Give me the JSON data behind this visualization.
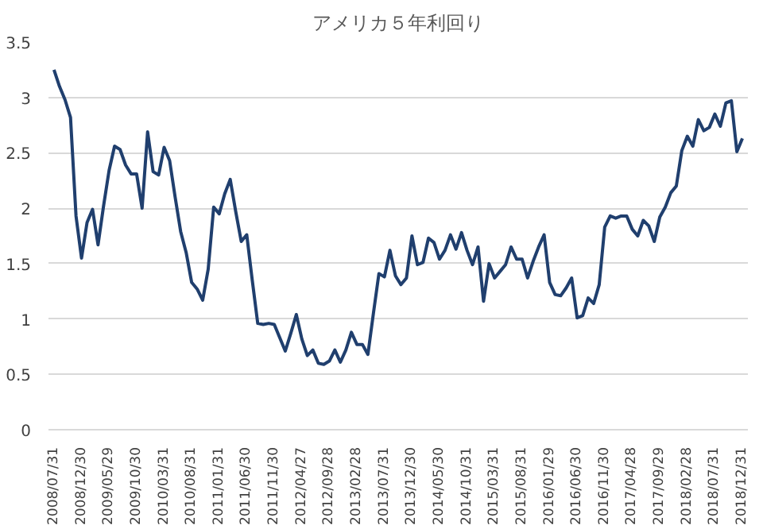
{
  "chart_data": {
    "type": "line",
    "title": "アメリカ５年利回り",
    "categories": [
      "2008/07/31",
      null,
      null,
      null,
      null,
      "2008/12/30",
      null,
      null,
      null,
      null,
      "2009/05/29",
      null,
      null,
      null,
      null,
      "2009/10/30",
      null,
      null,
      null,
      null,
      "2010/03/31",
      null,
      null,
      null,
      null,
      "2010/08/31",
      null,
      null,
      null,
      null,
      "2011/01/31",
      null,
      null,
      null,
      null,
      "2011/06/30",
      null,
      null,
      null,
      null,
      "2011/11/30",
      null,
      null,
      null,
      null,
      "2012/04/27",
      null,
      null,
      null,
      null,
      "2012/09/28",
      null,
      null,
      null,
      null,
      "2013/02/28",
      null,
      null,
      null,
      null,
      "2013/07/31",
      null,
      null,
      null,
      null,
      "2013/12/30",
      null,
      null,
      null,
      null,
      "2014/05/30",
      null,
      null,
      null,
      null,
      "2014/10/31",
      null,
      null,
      null,
      null,
      "2015/03/31",
      null,
      null,
      null,
      null,
      "2015/08/31",
      null,
      null,
      null,
      null,
      "2016/01/29",
      null,
      null,
      null,
      null,
      "2016/06/30",
      null,
      null,
      null,
      null,
      "2016/11/30",
      null,
      null,
      null,
      null,
      "2017/04/28",
      null,
      null,
      null,
      null,
      "2017/09/29",
      null,
      null,
      null,
      null,
      "2018/02/28",
      null,
      null,
      null,
      null,
      "2018/07/31",
      null,
      null,
      null,
      null,
      "2018/12/31"
    ],
    "series": [
      {
        "color": "#203f6e",
        "values": [
          3.25,
          3.1,
          2.98,
          2.82,
          1.93,
          1.55,
          1.87,
          1.99,
          1.67,
          2.02,
          2.34,
          2.56,
          2.53,
          2.39,
          2.31,
          2.31,
          2.0,
          2.69,
          2.33,
          2.3,
          2.55,
          2.43,
          2.1,
          1.79,
          1.6,
          1.33,
          1.27,
          1.17,
          1.45,
          2.01,
          1.95,
          2.13,
          2.26,
          1.97,
          1.7,
          1.76,
          1.35,
          0.96,
          0.95,
          0.96,
          0.95,
          0.83,
          0.71,
          0.87,
          1.04,
          0.82,
          0.67,
          0.72,
          0.6,
          0.59,
          0.62,
          0.72,
          0.61,
          0.72,
          0.88,
          0.77,
          0.77,
          0.68,
          1.05,
          1.41,
          1.38,
          1.62,
          1.39,
          1.31,
          1.37,
          1.75,
          1.49,
          1.51,
          1.73,
          1.69,
          1.54,
          1.62,
          1.76,
          1.63,
          1.78,
          1.62,
          1.49,
          1.65,
          1.16,
          1.5,
          1.37,
          1.43,
          1.49,
          1.65,
          1.54,
          1.54,
          1.37,
          1.52,
          1.65,
          1.76,
          1.33,
          1.22,
          1.21,
          1.28,
          1.37,
          1.01,
          1.03,
          1.19,
          1.14,
          1.31,
          1.83,
          1.93,
          1.91,
          1.93,
          1.93,
          1.81,
          1.75,
          1.89,
          1.84,
          1.7,
          1.92,
          2.01,
          2.14,
          2.2,
          2.52,
          2.65,
          2.56,
          2.8,
          2.7,
          2.73,
          2.85,
          2.74,
          2.95,
          2.97,
          2.51,
          2.63
        ]
      }
    ],
    "ylim": [
      0,
      3.5
    ],
    "yticks": [
      0,
      0.5,
      1,
      1.5,
      2,
      2.5,
      3,
      3.5
    ],
    "grid": "y"
  }
}
